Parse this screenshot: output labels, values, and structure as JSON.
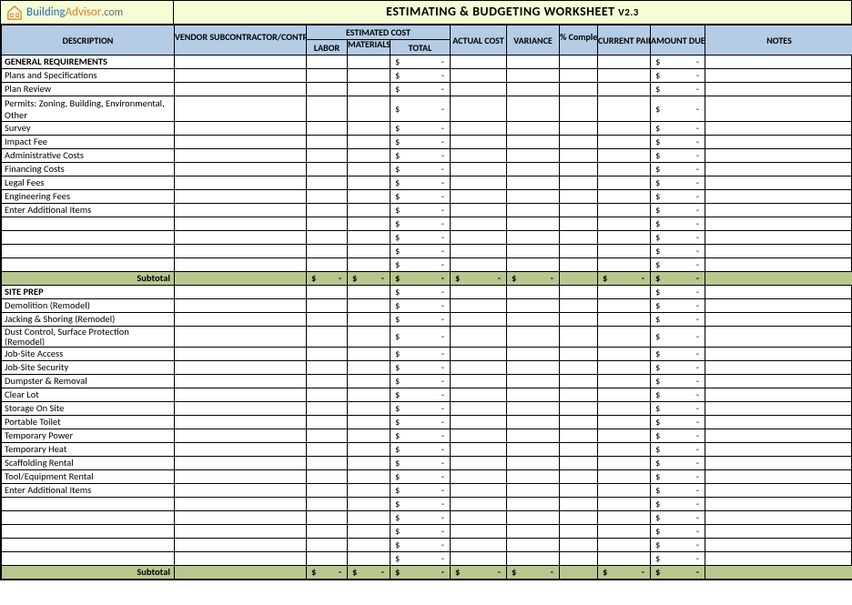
{
  "logo": {
    "brand1": "Building",
    "brand2": "Advisor",
    "tld": ".com"
  },
  "title": {
    "main": "ESTIMATING & BUDGETING WORKSHEET",
    "version": "V2.3"
  },
  "headers": {
    "description": "DESCRIPTION",
    "vendor": "VENDOR SUBCONTRACTOR/CONTRACTOR",
    "est_cost": "ESTIMATED COST",
    "labor": "LABOR",
    "materials": "MATERIALS",
    "total": "TOTAL",
    "actual": "ACTUAL COST",
    "variance": "VARIANCE",
    "complete": "% Complete",
    "paid": "CURRENT PAID",
    "due": "AMOUNT DUE",
    "notes": "NOTES"
  },
  "dash": "-",
  "dollar": "$",
  "subtotal": "Subtotal",
  "sections": [
    {
      "name": "GENERAL REQUIREMENTS",
      "rows": [
        {
          "d": "Plans and Specifications"
        },
        {
          "d": "Plan Review"
        },
        {
          "d": "Permits: Zoning, Building, Environmental, Other",
          "tall": true
        },
        {
          "d": "Survey"
        },
        {
          "d": "Impact Fee"
        },
        {
          "d": "Administrative Costs"
        },
        {
          "d": "Financing Costs"
        },
        {
          "d": "Legal Fees"
        },
        {
          "d": "Engineering Fees"
        },
        {
          "d": "Enter Additional Items"
        },
        {
          "d": ""
        },
        {
          "d": ""
        },
        {
          "d": ""
        },
        {
          "d": ""
        }
      ]
    },
    {
      "name": "SITE PREP",
      "rows": [
        {
          "d": "Demolition (Remodel)"
        },
        {
          "d": "Jacking & Shoring (Remodel)"
        },
        {
          "d": "Dust Control, Surface Protection (Remodel)",
          "cut": true
        },
        {
          "d": "Job-Site Access"
        },
        {
          "d": "Job-Site Security"
        },
        {
          "d": "Dumpster & Removal"
        },
        {
          "d": "Clear Lot"
        },
        {
          "d": "Storage On Site"
        },
        {
          "d": "Portable Toilet"
        },
        {
          "d": "Temporary Power"
        },
        {
          "d": "Temporary Heat"
        },
        {
          "d": "Scaffolding Rental"
        },
        {
          "d": "Tool/Equipment Rental"
        },
        {
          "d": "Enter Additional Items"
        },
        {
          "d": ""
        },
        {
          "d": ""
        },
        {
          "d": ""
        },
        {
          "d": ""
        },
        {
          "d": ""
        }
      ]
    }
  ],
  "colors": {
    "title_bg": "#f5fdd5",
    "header_bg": "#b5cce5",
    "subtotal_bg": "#b9c78f",
    "border": "#000000"
  }
}
